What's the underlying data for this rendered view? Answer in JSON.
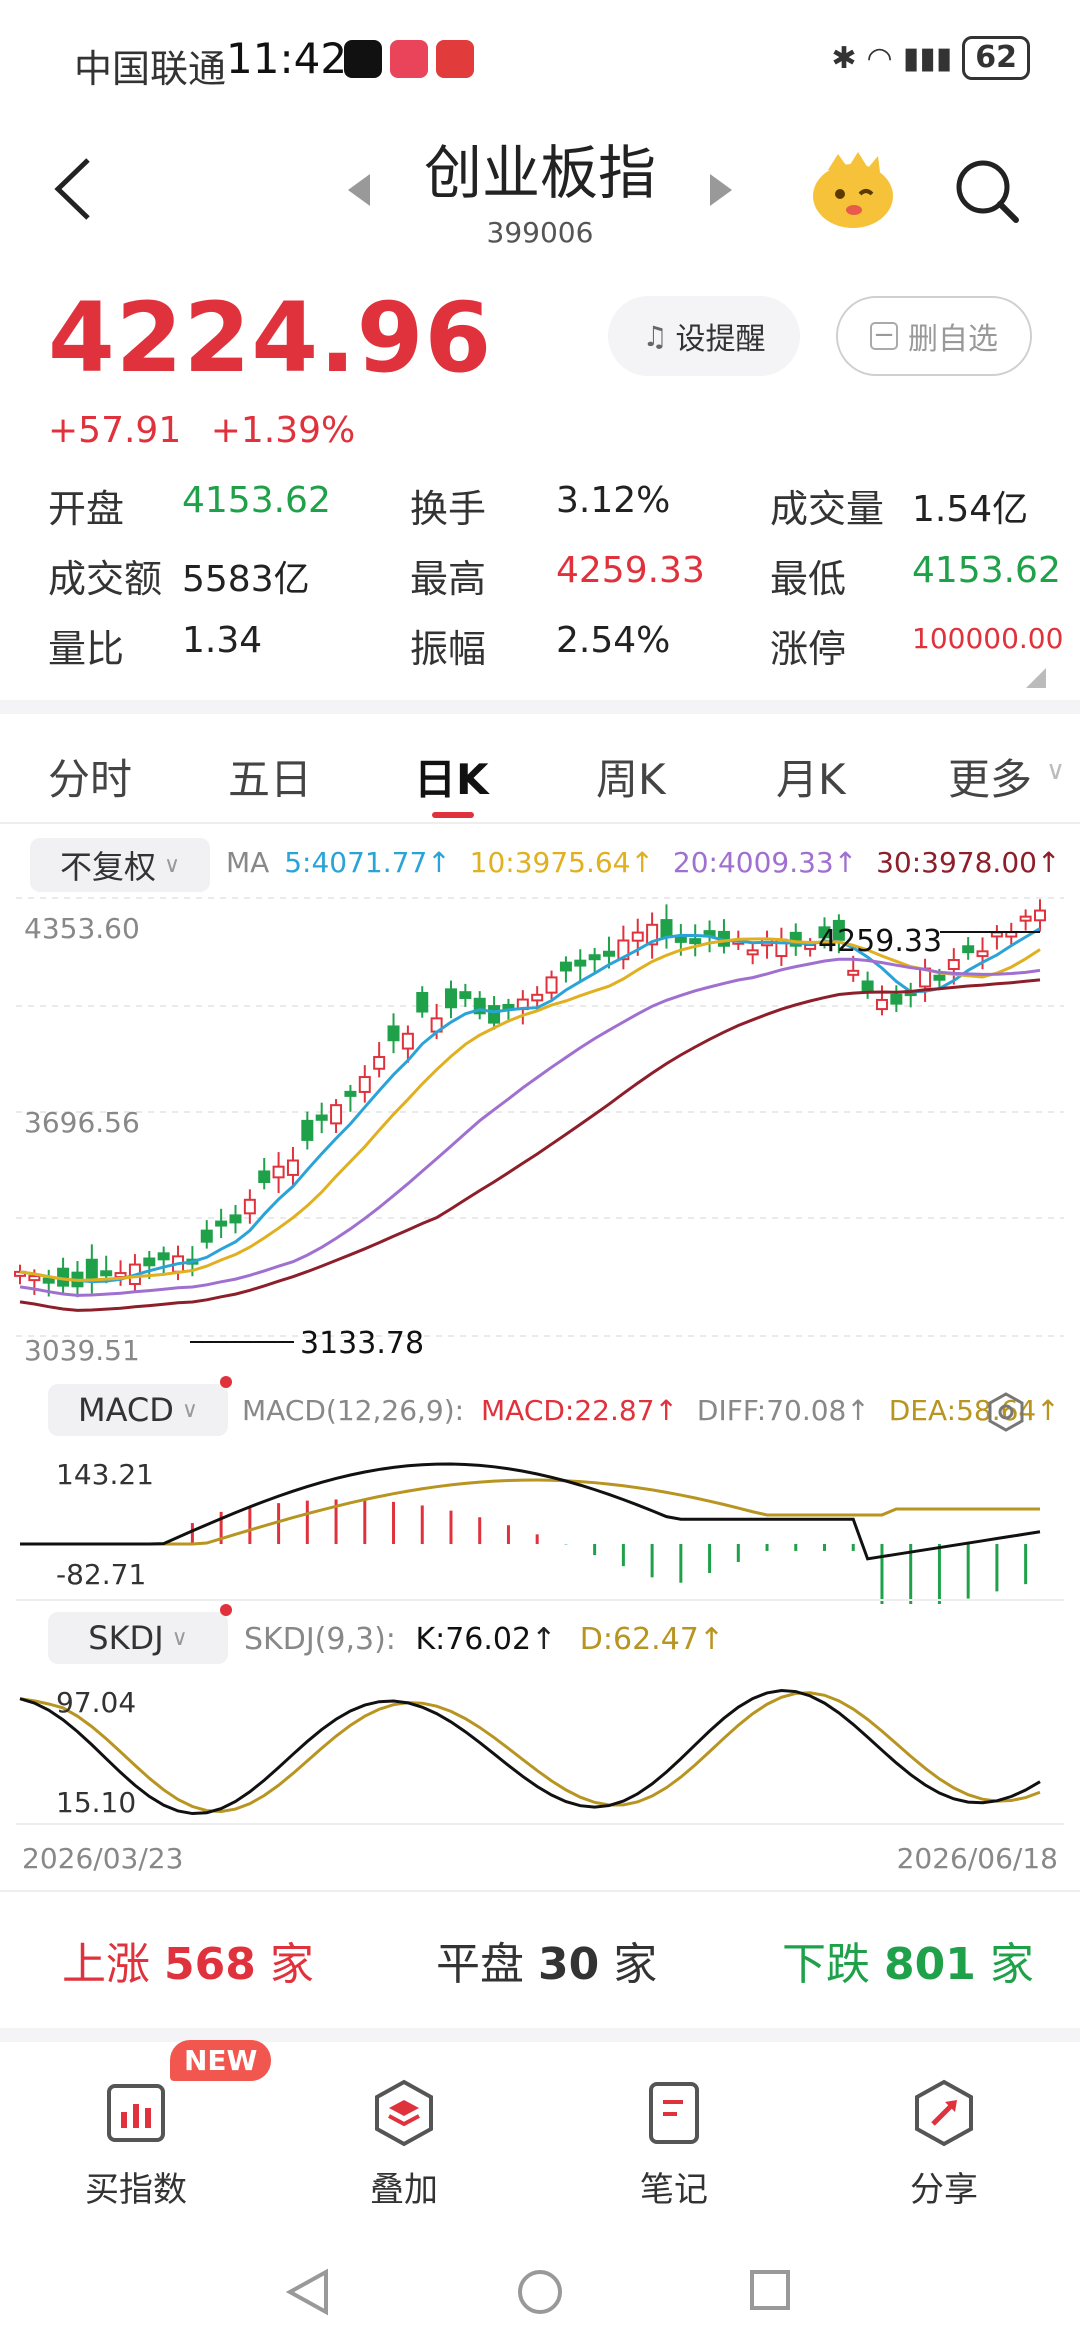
{
  "status_bar": {
    "carrier": "中国联通",
    "time": "11:42",
    "battery": "62"
  },
  "header": {
    "title": "创业板指",
    "code": "399006"
  },
  "quote": {
    "price": "4224.96",
    "change": "+57.91",
    "change_pct": "+1.39%",
    "remind_label": "设提醒",
    "remove_label": "删自选"
  },
  "stats": [
    {
      "label": "开盘",
      "value": "4153.62",
      "tone": "green"
    },
    {
      "label": "换手",
      "value": "3.12%",
      "tone": "dark"
    },
    {
      "label": "成交量",
      "value": "1.54亿",
      "tone": "dark"
    },
    {
      "label": "成交额",
      "value": "5583亿",
      "tone": "dark"
    },
    {
      "label": "最高",
      "value": "4259.33",
      "tone": "red"
    },
    {
      "label": "最低",
      "value": "4153.62",
      "tone": "green"
    },
    {
      "label": "量比",
      "value": "1.34",
      "tone": "dark"
    },
    {
      "label": "振幅",
      "value": "2.54%",
      "tone": "dark"
    },
    {
      "label": "涨停",
      "value": "100000.00",
      "tone": "red"
    }
  ],
  "tabs": [
    "分时",
    "五日",
    "日K",
    "周K",
    "月K",
    "更多"
  ],
  "active_tab": "日K",
  "kline": {
    "adjust_label": "不复权",
    "ma": {
      "label": "MA",
      "ma5": "5:4071.77",
      "ma10": "10:3975.64",
      "ma20": "20:4009.33",
      "ma30": "30:3978.00"
    },
    "y_high": "4353.60",
    "y_mid": "3696.56",
    "y_low": "3039.51",
    "high_mark": "4259.33",
    "low_mark": "3133.78",
    "colors": {
      "ma5": "#2aa3d6",
      "ma10": "#e0b020",
      "ma20": "#a070d0",
      "ma30": "#8c1f2a",
      "up": "#e0323c",
      "down": "#1fa14a"
    }
  },
  "macd": {
    "label": "MACD",
    "params": "MACD(12,26,9):",
    "macd": "MACD:22.87",
    "diff": "DIFF:70.08",
    "dea": "DEA:58.64",
    "y_high": "143.21",
    "y_low": "-82.71"
  },
  "skdj": {
    "label": "SKDJ",
    "params": "SKDJ(9,3):",
    "k": "K:76.02",
    "d": "D:62.47",
    "y_high": "97.04",
    "y_low": "15.10"
  },
  "dates": {
    "start": "2026/03/23",
    "end": "2026/06/18"
  },
  "breadth": {
    "up_label": "上涨",
    "up_count": "568",
    "unit": "家",
    "flat_label": "平盘",
    "flat_count": "30",
    "down_label": "下跌",
    "down_count": "801"
  },
  "bottom_nav": {
    "items": [
      "买指数",
      "叠加",
      "笔记",
      "分享"
    ],
    "new_badge": "NEW"
  }
}
